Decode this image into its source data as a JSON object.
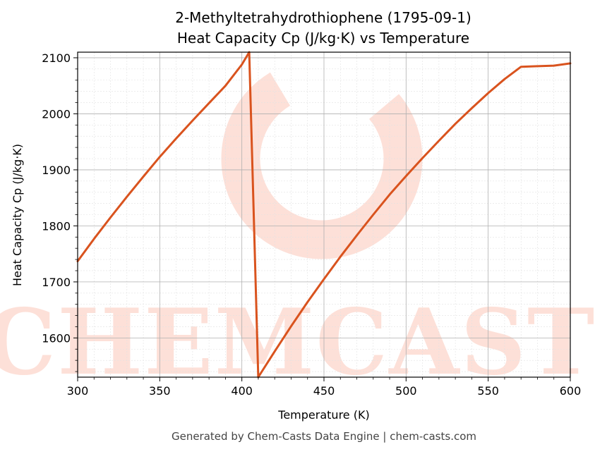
{
  "chart_data": {
    "type": "line",
    "title_lines": [
      "2-Methyltetrahydrothiophene (1795-09-1)",
      "Heat Capacity Cp (J/kg·K) vs Temperature"
    ],
    "xlabel": "Temperature (K)",
    "ylabel": "Heat Capacity Cp (J/kg·K)",
    "xlim": [
      300,
      600
    ],
    "ylim": [
      1530,
      2110
    ],
    "xticks": [
      300,
      350,
      400,
      450,
      500,
      550,
      600
    ],
    "yticks": [
      1600,
      1700,
      1800,
      1900,
      2000,
      2100
    ],
    "grid": true,
    "series": [
      {
        "color": "#d9531e",
        "x": [
          300,
          310,
          320,
          330,
          340,
          350,
          360,
          370,
          380,
          390,
          400,
          404.5,
          410,
          420,
          430,
          440,
          450,
          460,
          470,
          480,
          490,
          500,
          510,
          520,
          530,
          540,
          550,
          560,
          570,
          580,
          590,
          600
        ],
        "y": [
          1737,
          1777,
          1815,
          1852,
          1888,
          1923,
          1956,
          1988,
          2019,
          2050,
          2088,
          2110,
          1530,
          1576,
          1621,
          1664,
          1705,
          1745,
          1783,
          1820,
          1856,
          1889,
          1921,
          1952,
          1982,
          2010,
          2037,
          2062,
          2084,
          2085,
          2086,
          2090
        ]
      }
    ]
  },
  "watermark": {
    "text": "CHEMCASTS"
  },
  "footer": "Generated by Chem-Casts Data Engine | chem-casts.com"
}
